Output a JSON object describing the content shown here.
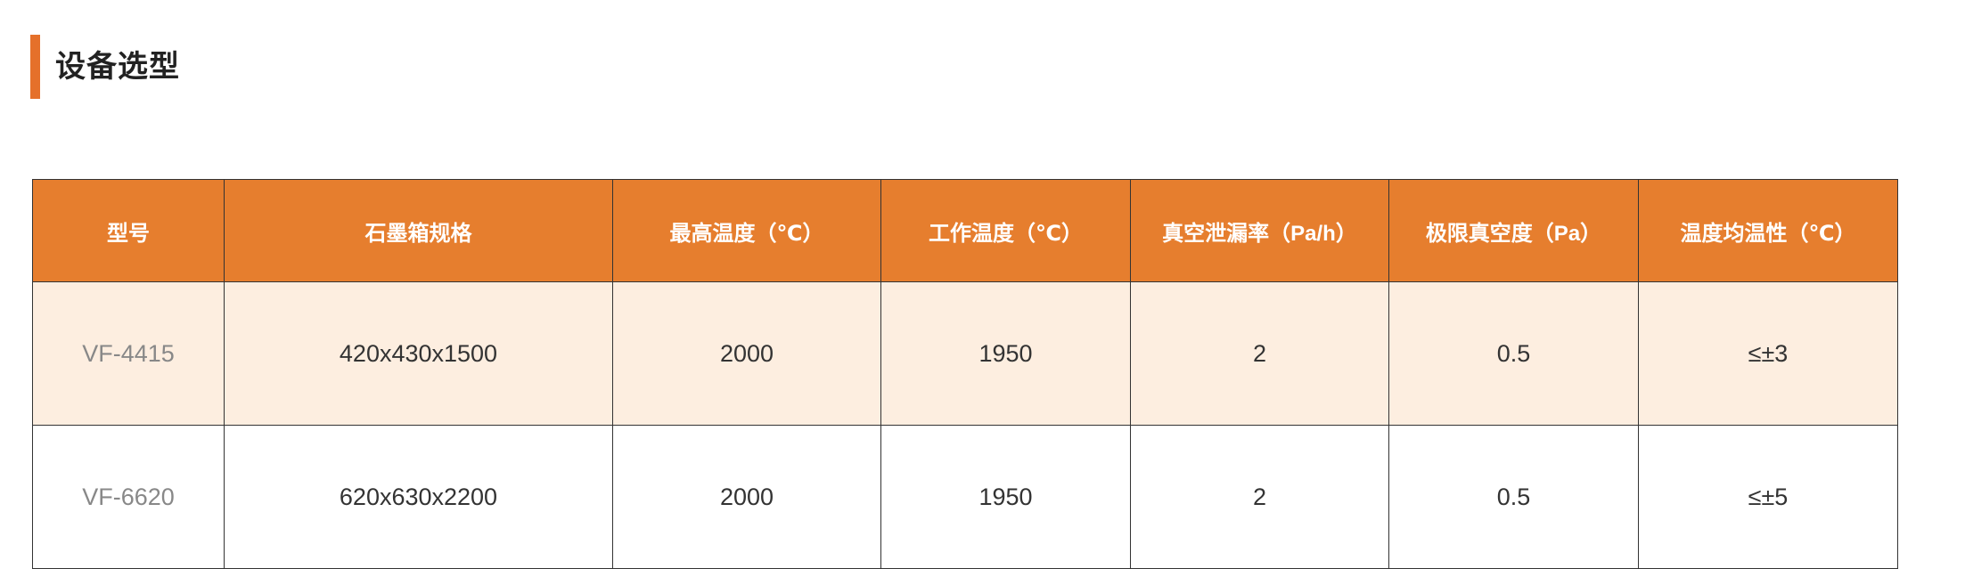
{
  "section": {
    "title": "设备选型",
    "accent_color": "#E5702A"
  },
  "table": {
    "header_color": "#E67E2E",
    "columns": [
      "型号",
      "石墨箱规格",
      "最高温度（℃）",
      "工作温度（℃）",
      "真空泄漏率（Pa/h）",
      "极限真空度（Pa）",
      "温度均温性（℃）"
    ],
    "rows": [
      [
        "VF-4415",
        "420x430x1500",
        "2000",
        "1950",
        "2",
        "0.5",
        "≤±3"
      ],
      [
        "VF-6620",
        "620x630x2200",
        "2000",
        "1950",
        "2",
        "0.5",
        "≤±5"
      ]
    ]
  }
}
